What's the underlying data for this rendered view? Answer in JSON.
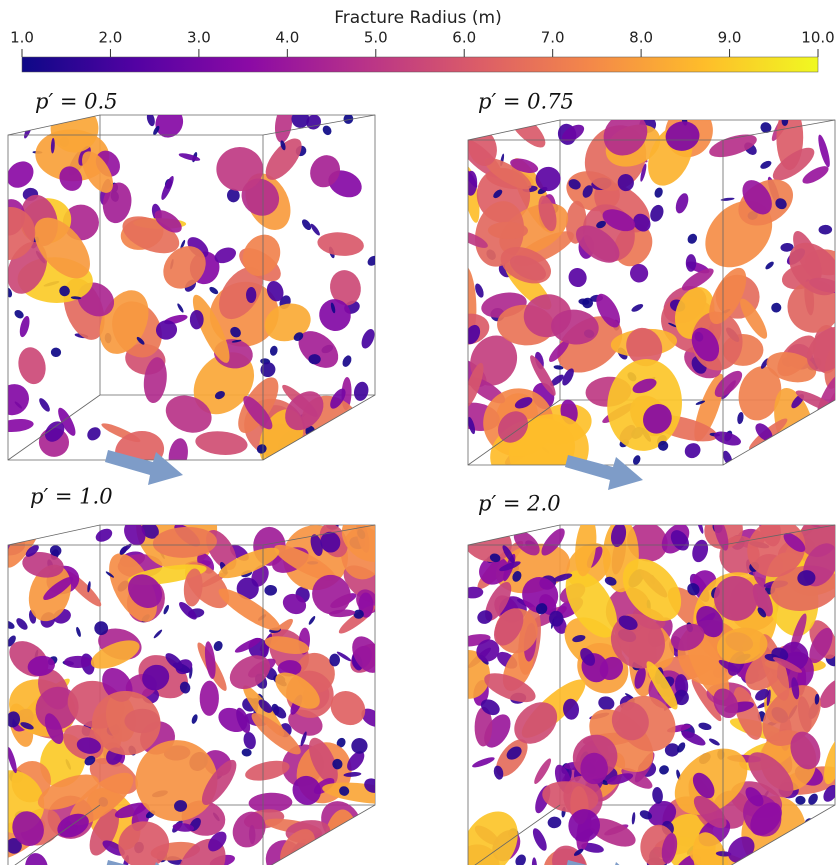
{
  "colorbar": {
    "title": "Fracture Radius (m)",
    "range": [
      1,
      10
    ],
    "ticks": [
      {
        "value": 1,
        "label": "1.0"
      },
      {
        "value": 2,
        "label": "2.0"
      },
      {
        "value": 3,
        "label": "3.0"
      },
      {
        "value": 4,
        "label": "4.0"
      },
      {
        "value": 5,
        "label": "5.0"
      },
      {
        "value": 6,
        "label": "6.0"
      },
      {
        "value": 7,
        "label": "7.0"
      },
      {
        "value": 8,
        "label": "8.0"
      },
      {
        "value": 9,
        "label": "9.0"
      },
      {
        "value": 10,
        "label": "10.0"
      }
    ],
    "colormap": [
      "#0d0887",
      "#5302a3",
      "#8b0aa5",
      "#b83289",
      "#db5c68",
      "#f48849",
      "#febd2a",
      "#f0f921"
    ]
  },
  "panels": [
    {
      "label": "p′ = 0.5"
    },
    {
      "label": "p′ = 0.75"
    },
    {
      "label": "p′ = 1.0"
    },
    {
      "label": "p′ = 2.0"
    }
  ]
}
